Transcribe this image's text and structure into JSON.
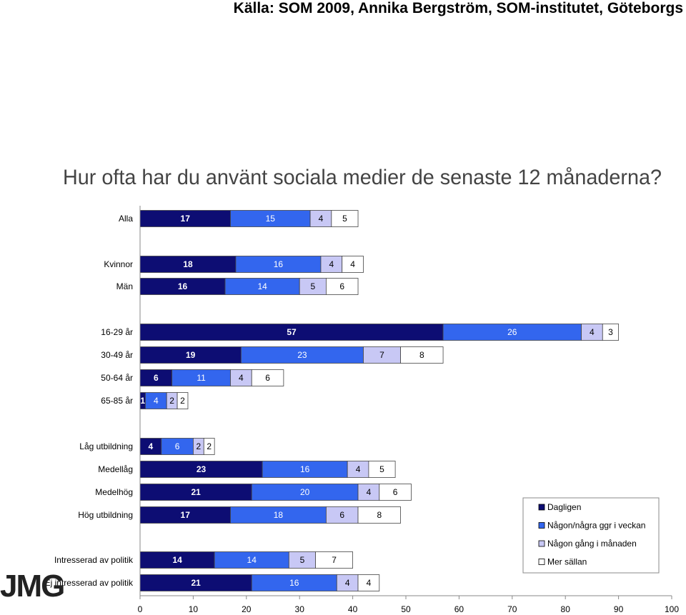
{
  "source_text": "Källa: SOM 2009, Annika Bergström, SOM-institutet, Göteborgs",
  "logo_text": "JMG",
  "chart_data": {
    "type": "bar",
    "orientation": "horizontal",
    "stacked": true,
    "title": "Hur ofta har du använt sociala medier de senaste 12 månaderna?",
    "xlim": [
      0,
      100
    ],
    "xticks": [
      0,
      10,
      20,
      30,
      40,
      50,
      60,
      70,
      80,
      90,
      100
    ],
    "categories": [
      "Alla",
      "Kvinnor",
      "Män",
      "16-29 år",
      "30-49 år",
      "50-64 år",
      "65-85 år",
      "Låg utbildning",
      "Medellåg",
      "Medelhög",
      "Hög utbildning",
      "Intresserad av politik",
      "Ej intresserad av politik"
    ],
    "series": [
      {
        "name": "Dagligen",
        "color": "#0d0d73",
        "values": [
          17,
          18,
          16,
          57,
          19,
          6,
          1,
          4,
          23,
          21,
          17,
          14,
          21
        ]
      },
      {
        "name": "Någon/några ggr i veckan",
        "color": "#3366ee",
        "values": [
          15,
          16,
          14,
          26,
          23,
          11,
          4,
          6,
          16,
          20,
          18,
          14,
          16
        ]
      },
      {
        "name": "Någon gång i månaden",
        "color": "#c8c8f5",
        "values": [
          4,
          4,
          5,
          4,
          7,
          4,
          2,
          2,
          4,
          4,
          6,
          5,
          4
        ]
      },
      {
        "name": "Mer sällan",
        "color": "#ffffff",
        "values": [
          5,
          4,
          6,
          3,
          8,
          6,
          2,
          2,
          5,
          6,
          8,
          7,
          4
        ]
      }
    ],
    "legend_position": "bottom-right",
    "grid": false
  }
}
